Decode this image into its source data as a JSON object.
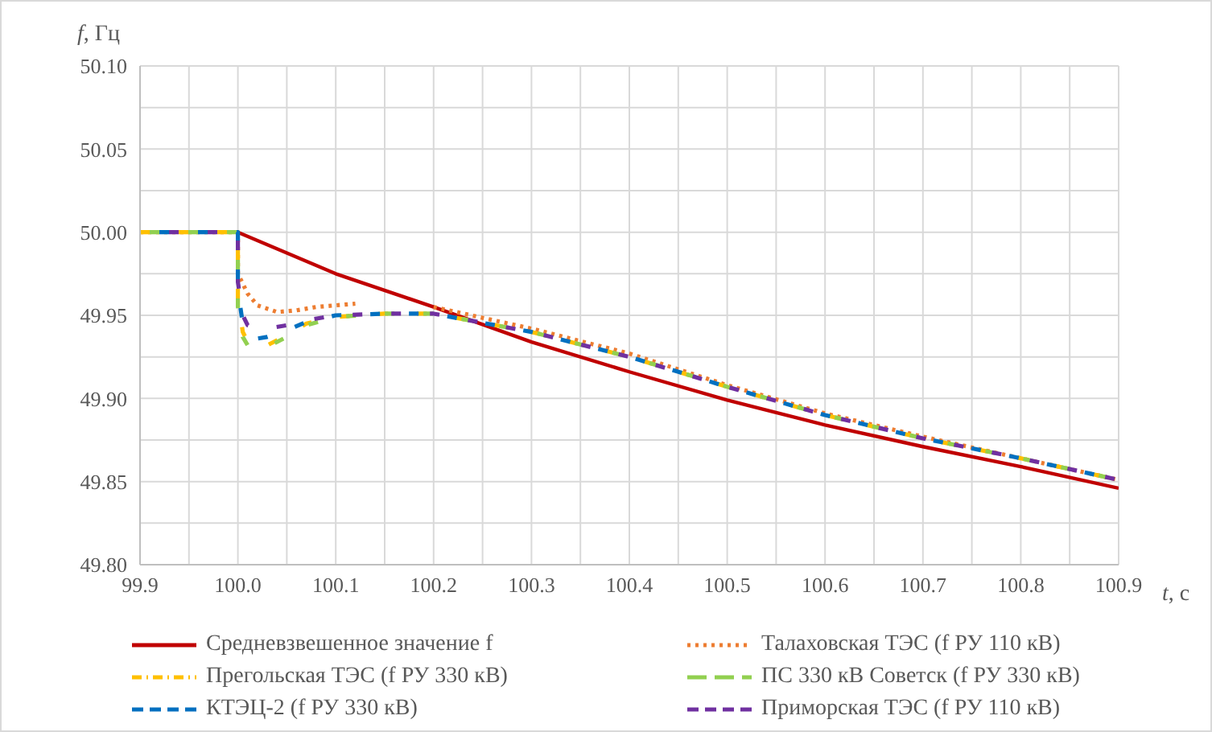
{
  "chart_data": {
    "type": "line",
    "xlabel": "t, с",
    "ylabel": "f, Гц",
    "xlim": [
      99.9,
      100.9
    ],
    "xticks": [
      {
        "value": 99.9,
        "label": "99.9"
      },
      {
        "value": 99.95,
        "label": null
      },
      {
        "value": 100,
        "label": "100.0"
      },
      {
        "value": 100.05,
        "label": null
      },
      {
        "value": 100.1,
        "label": "100.1"
      },
      {
        "value": 100.15,
        "label": null
      },
      {
        "value": 100.2,
        "label": "100.2"
      },
      {
        "value": 100.25,
        "label": null
      },
      {
        "value": 100.3,
        "label": "100.3"
      },
      {
        "value": 100.35,
        "label": null
      },
      {
        "value": 100.4,
        "label": "100.4"
      },
      {
        "value": 100.45,
        "label": null
      },
      {
        "value": 100.5,
        "label": "100.5"
      },
      {
        "value": 100.55,
        "label": null
      },
      {
        "value": 100.6,
        "label": "100.6"
      },
      {
        "value": 100.65,
        "label": null
      },
      {
        "value": 100.7,
        "label": "100.7"
      },
      {
        "value": 100.75,
        "label": null
      },
      {
        "value": 100.8,
        "label": "100.8"
      },
      {
        "value": 100.85,
        "label": null
      },
      {
        "value": 100.9,
        "label": "100.9"
      }
    ],
    "ylim": [
      49.8,
      50.1
    ],
    "yticks": [
      {
        "value": 49.8,
        "label": "49.80"
      },
      {
        "value": 49.825,
        "label": null
      },
      {
        "value": 49.85,
        "label": "49.85"
      },
      {
        "value": 49.875,
        "label": null
      },
      {
        "value": 49.9,
        "label": "49.90"
      },
      {
        "value": 49.925,
        "label": null
      },
      {
        "value": 49.95,
        "label": "49.95"
      },
      {
        "value": 49.975,
        "label": null
      },
      {
        "value": 50,
        "label": "50.00"
      },
      {
        "value": 50.025,
        "label": null
      },
      {
        "value": 50.05,
        "label": "50.05"
      },
      {
        "value": 50.075,
        "label": null
      },
      {
        "value": 50.1,
        "label": "50.10"
      }
    ],
    "grid": true,
    "legend": "bottom",
    "marker": "none",
    "series": [
      {
        "name": "Средневзвешенное значение f",
        "color": "#c00000",
        "line_style": "solid",
        "x": [
          99.9,
          100,
          100.1,
          100.2,
          100.3,
          100.4,
          100.5,
          100.6,
          100.7,
          100.8,
          100.9
        ],
        "values": [
          50,
          50,
          49.975,
          49.955,
          49.934,
          49.916,
          49.899,
          49.884,
          49.871,
          49.859,
          49.846
        ]
      },
      {
        "name": "Талаховская ТЭС (f РУ 110 кВ)",
        "color": "#ed7d31",
        "line_style": "dotted",
        "x": [
          99.9,
          100,
          100,
          100.01,
          100.02,
          100.04,
          100.06,
          100.08,
          100.1,
          100.12,
          100.15,
          100.2,
          100.3,
          100.4,
          100.5,
          100.6,
          100.7,
          100.8,
          100.9
        ],
        "values": [
          50,
          50,
          49.975,
          49.963,
          49.956,
          49.952,
          49.953,
          49.955,
          49.956,
          49.957,
          null,
          49.955,
          49.942,
          49.927,
          49.908,
          49.891,
          49.877,
          49.864,
          49.851
        ]
      },
      {
        "name": "Прегольская ТЭС (f РУ 330 кВ)",
        "color": "#ffc000",
        "line_style": "dashed",
        "x": [
          99.9,
          100,
          100,
          100.005,
          100.01,
          100.02,
          100.03,
          100.05,
          100.07,
          100.1,
          100.15,
          100.2,
          100.3,
          100.4,
          100.5,
          100.6,
          100.7,
          100.8,
          100.9
        ],
        "values": [
          50,
          50,
          49.96,
          49.94,
          49.934,
          49.931,
          49.932,
          49.938,
          49.945,
          49.949,
          49.951,
          49.951,
          49.94,
          49.925,
          49.907,
          49.89,
          49.876,
          49.864,
          49.851
        ]
      },
      {
        "name": "ПС 330 кВ Советск (f РУ 330 кВ)",
        "color": "#92d050",
        "line_style": "dashed",
        "x": [
          99.9,
          100,
          100,
          100.005,
          100.01,
          100.02,
          100.03,
          100.05,
          100.07,
          100.1,
          100.15,
          100.2,
          100.3,
          100.4,
          100.5,
          100.6,
          100.7,
          100.8,
          100.9
        ],
        "values": [
          50,
          50,
          49.955,
          49.937,
          49.932,
          49.93,
          49.931,
          49.937,
          49.944,
          49.949,
          49.951,
          49.951,
          49.94,
          49.925,
          49.907,
          49.89,
          49.876,
          49.864,
          49.851
        ]
      },
      {
        "name": "КТЭЦ-2 (f РУ 330 кВ)",
        "color": "#0070c0",
        "line_style": "dashed",
        "x": [
          99.9,
          100,
          100,
          100.005,
          100.01,
          100.02,
          100.03,
          100.05,
          100.07,
          100.1,
          100.15,
          100.2,
          100.3,
          100.4,
          100.5,
          100.6,
          100.7,
          100.8,
          100.9
        ],
        "values": [
          50,
          50,
          49.965,
          49.945,
          49.939,
          49.936,
          49.937,
          49.941,
          49.946,
          49.95,
          49.951,
          49.951,
          49.94,
          49.925,
          49.907,
          49.89,
          49.876,
          49.864,
          49.851
        ]
      },
      {
        "name": "Приморская ТЭС (f РУ 110 кВ)",
        "color": "#7030a0",
        "line_style": "dashed",
        "x": [
          99.9,
          100,
          100,
          100.005,
          100.01,
          100.02,
          100.03,
          100.05,
          100.07,
          100.1,
          100.15,
          100.2,
          100.3,
          100.4,
          100.5,
          100.6,
          100.7,
          100.8,
          100.9
        ],
        "values": [
          50,
          50,
          49.97,
          49.95,
          49.944,
          49.942,
          49.942,
          49.944,
          49.947,
          49.95,
          49.951,
          49.951,
          49.94,
          49.925,
          49.907,
          49.89,
          49.876,
          49.864,
          49.851
        ]
      }
    ]
  }
}
